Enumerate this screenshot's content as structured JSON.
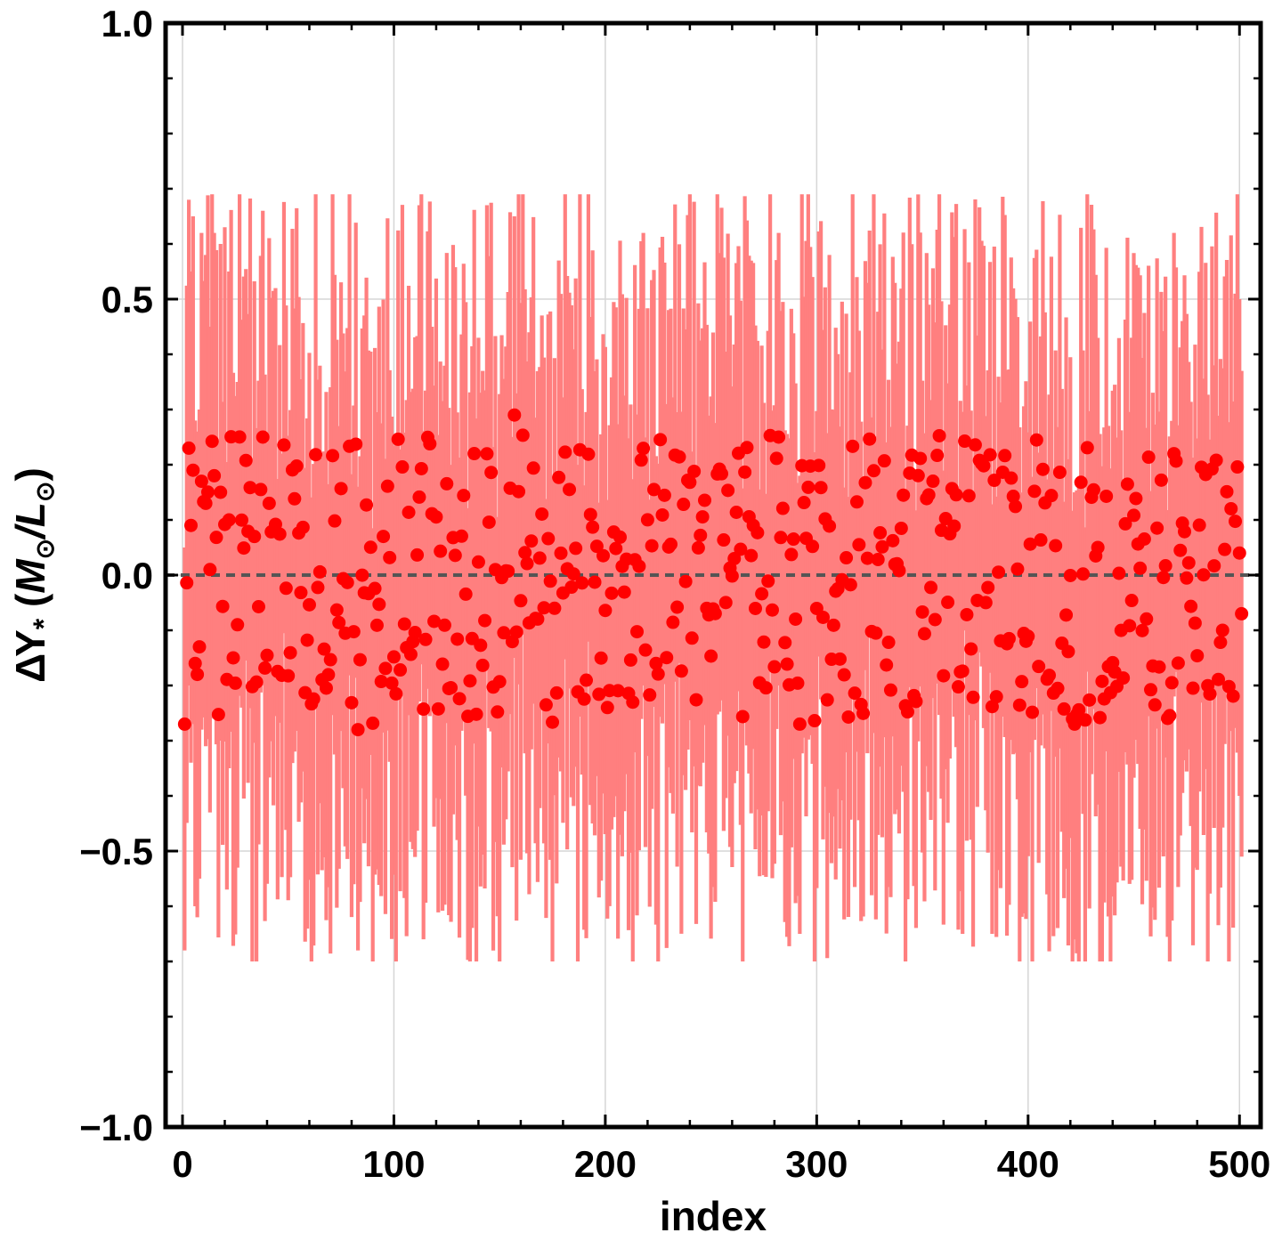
{
  "chart_data": {
    "type": "scatter",
    "xlabel": "index",
    "ylabel": {
      "base": "ΔΥ",
      "subscript": "*",
      "units_open": " (",
      "num": "M",
      "num_sub": "⊙",
      "slash": "/",
      "den": "L",
      "den_sub": "⊙",
      "units_close": ")"
    },
    "xlim": [
      -8,
      510
    ],
    "ylim": [
      -1.0,
      1.0
    ],
    "x_ticks": [
      "0",
      "100",
      "200",
      "300",
      "400",
      "500"
    ],
    "y_ticks": [
      "−1.0",
      "−0.5",
      "0.0",
      "0.5",
      "1.0"
    ],
    "grid": true,
    "reference_line": {
      "y": 0.0,
      "style": "dashed"
    },
    "series": [
      {
        "marker_color": "#ff0000",
        "errorbar_color": "#ff7f7f",
        "n_points": 500,
        "values_summary": {
          "y_min": -0.28,
          "y_max": 0.29,
          "typical_error_halfwidth": 0.45,
          "max_error_upper": 0.69,
          "min_error_lower": -0.7
        },
        "sample_points": [
          {
            "x": 1,
            "y": -0.27,
            "lo": -0.68,
            "hi": 0.05
          },
          {
            "x": 3,
            "y": 0.23,
            "lo": -0.2,
            "hi": 0.68
          },
          {
            "x": 4,
            "y": 0.09,
            "lo": -0.34,
            "hi": 0.55
          },
          {
            "x": 5,
            "y": 0.19,
            "lo": -0.27,
            "hi": 0.65
          },
          {
            "x": 6,
            "y": -0.16,
            "lo": -0.6,
            "hi": 0.28
          },
          {
            "x": 7,
            "y": -0.18,
            "lo": -0.62,
            "hi": 0.26
          },
          {
            "x": 8,
            "y": -0.13,
            "lo": -0.55,
            "hi": 0.3
          },
          {
            "x": 9,
            "y": 0.17,
            "lo": -0.28,
            "hi": 0.62
          },
          {
            "x": 11,
            "y": 0.13,
            "lo": -0.31,
            "hi": 0.58
          },
          {
            "x": 13,
            "y": 0.01,
            "lo": -0.43,
            "hi": 0.45
          },
          {
            "x": 15,
            "y": 0.18,
            "lo": -0.26,
            "hi": 0.62
          },
          {
            "x": 18,
            "y": 0.15,
            "lo": -0.3,
            "hi": 0.6
          },
          {
            "x": 22,
            "y": 0.1,
            "lo": -0.35,
            "hi": 0.55
          },
          {
            "x": 26,
            "y": -0.09,
            "lo": -0.53,
            "hi": 0.35
          },
          {
            "x": 38,
            "y": 0.25,
            "lo": -0.2,
            "hi": 0.66
          },
          {
            "x": 83,
            "y": -0.28,
            "lo": -0.68,
            "hi": 0.16
          },
          {
            "x": 157,
            "y": 0.29,
            "lo": -0.15,
            "hi": 0.65
          },
          {
            "x": 282,
            "y": 0.25,
            "lo": -0.2,
            "hi": 0.62
          },
          {
            "x": 292,
            "y": -0.27,
            "lo": -0.65,
            "hi": 0.18
          },
          {
            "x": 422,
            "y": -0.27,
            "lo": -0.66,
            "hi": 0.15
          },
          {
            "x": 469,
            "y": 0.22,
            "lo": -0.22,
            "hi": 0.62
          },
          {
            "x": 500,
            "y": 0.04,
            "lo": -0.4,
            "hi": 0.5
          },
          {
            "x": 501,
            "y": -0.07,
            "lo": -0.51,
            "hi": 0.37
          }
        ]
      }
    ]
  }
}
